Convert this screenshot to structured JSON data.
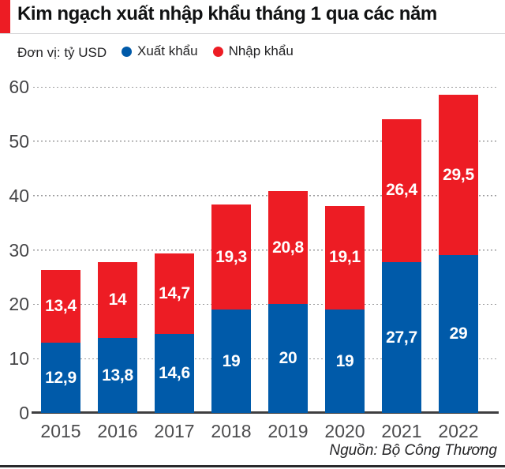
{
  "header": {
    "title": "Kim ngạch xuất nhập khẩu tháng 1 qua các năm",
    "unit_label": "Đơn vị: tỷ USD"
  },
  "legend": [
    {
      "key": "export",
      "label": "Xuất khẩu",
      "color": "#005aa9"
    },
    {
      "key": "import",
      "label": "Nhập khẩu",
      "color": "#ed1c24"
    }
  ],
  "source": "Nguồn: Bộ Công Thương",
  "colors": {
    "accent_red": "#ed1c24",
    "bar_blue": "#005aa9",
    "bar_red": "#ed1c24",
    "axis_text": "#4c4c4e",
    "gridline": "#9c9c9e"
  },
  "chart_data": {
    "type": "bar",
    "stacked": true,
    "title": "Kim ngạch xuất nhập khẩu tháng 1 qua các năm",
    "unit": "tỷ USD",
    "categories": [
      "2015",
      "2016",
      "2017",
      "2018",
      "2019",
      "2020",
      "2021",
      "2022"
    ],
    "series": [
      {
        "name": "Xuất khẩu",
        "key": "export",
        "color": "#005aa9",
        "values": [
          12.9,
          13.8,
          14.6,
          19,
          20,
          19,
          27.7,
          29
        ],
        "labels": [
          "12,9",
          "13,8",
          "14,6",
          "19",
          "20",
          "19",
          "27,7",
          "29"
        ]
      },
      {
        "name": "Nhập khẩu",
        "key": "import",
        "color": "#ed1c24",
        "values": [
          13.4,
          14,
          14.7,
          19.3,
          20.8,
          19.1,
          26.4,
          29.5
        ],
        "labels": [
          "13,4",
          "14",
          "14,7",
          "19,3",
          "20,8",
          "19,1",
          "26,4",
          "29,5"
        ]
      }
    ],
    "totals": [
      26.3,
      27.8,
      29.3,
      38.3,
      40.8,
      38.1,
      54.1,
      58.5
    ],
    "yticks": [
      0,
      10,
      20,
      30,
      40,
      50,
      60
    ],
    "ylim": [
      0,
      60
    ],
    "grid": "dotted horizontal",
    "legend_position": "top",
    "xlabel": "",
    "ylabel": "tỷ USD"
  }
}
